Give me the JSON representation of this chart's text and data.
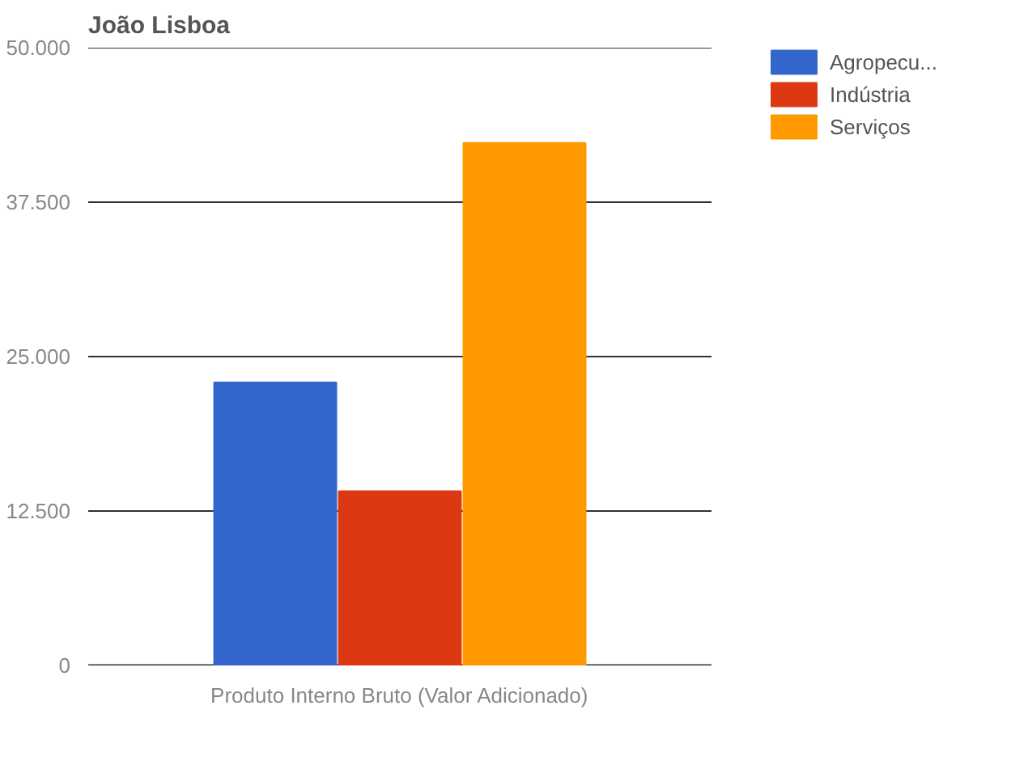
{
  "chart_data": {
    "type": "bar",
    "title": "João Lisboa",
    "categories": [
      "Produto Interno Bruto (Valor Adicionado)"
    ],
    "series": [
      {
        "name": "Agropecu...",
        "color": "#3366cc",
        "values": [
          22900
        ]
      },
      {
        "name": "Indústria",
        "color": "#dc3912",
        "values": [
          14100
        ]
      },
      {
        "name": "Serviços",
        "color": "#ff9900",
        "values": [
          42300
        ]
      }
    ],
    "ylim": [
      0,
      50000
    ],
    "yticks": [
      {
        "value": 0,
        "label": "0"
      },
      {
        "value": 12500,
        "label": "12.500"
      },
      {
        "value": 25000,
        "label": "25.000"
      },
      {
        "value": 37500,
        "label": "37.500"
      },
      {
        "value": 50000,
        "label": "50.000"
      }
    ],
    "grid": "y",
    "legend": "right"
  }
}
